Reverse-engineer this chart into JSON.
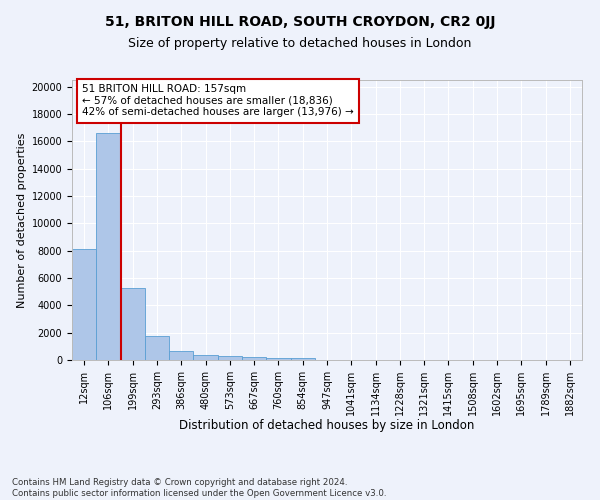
{
  "title_line1": "51, BRITON HILL ROAD, SOUTH CROYDON, CR2 0JJ",
  "title_line2": "Size of property relative to detached houses in London",
  "xlabel": "Distribution of detached houses by size in London",
  "ylabel": "Number of detached properties",
  "footnote": "Contains HM Land Registry data © Crown copyright and database right 2024.\nContains public sector information licensed under the Open Government Licence v3.0.",
  "bin_labels": [
    "12sqm",
    "106sqm",
    "199sqm",
    "293sqm",
    "386sqm",
    "480sqm",
    "573sqm",
    "667sqm",
    "760sqm",
    "854sqm",
    "947sqm",
    "1041sqm",
    "1134sqm",
    "1228sqm",
    "1321sqm",
    "1415sqm",
    "1508sqm",
    "1602sqm",
    "1695sqm",
    "1789sqm",
    "1882sqm"
  ],
  "bar_heights": [
    8100,
    16600,
    5300,
    1750,
    680,
    350,
    270,
    210,
    180,
    130,
    0,
    0,
    0,
    0,
    0,
    0,
    0,
    0,
    0,
    0,
    0
  ],
  "bar_color": "#aec6e8",
  "bar_edge_color": "#5a9fd4",
  "property_line_x": 1.5,
  "annotation_text": "51 BRITON HILL ROAD: 157sqm\n← 57% of detached houses are smaller (18,836)\n42% of semi-detached houses are larger (13,976) →",
  "annotation_box_color": "#ffffff",
  "annotation_box_edge": "#cc0000",
  "vline_color": "#cc0000",
  "ylim": [
    0,
    20500
  ],
  "yticks": [
    0,
    2000,
    4000,
    6000,
    8000,
    10000,
    12000,
    14000,
    16000,
    18000,
    20000
  ],
  "background_color": "#eef2fb",
  "plot_bg_color": "#eef2fb",
  "grid_color": "#ffffff",
  "title1_fontsize": 10,
  "title2_fontsize": 9,
  "xlabel_fontsize": 8.5,
  "ylabel_fontsize": 8,
  "tick_fontsize": 7,
  "annot_fontsize": 7.5
}
